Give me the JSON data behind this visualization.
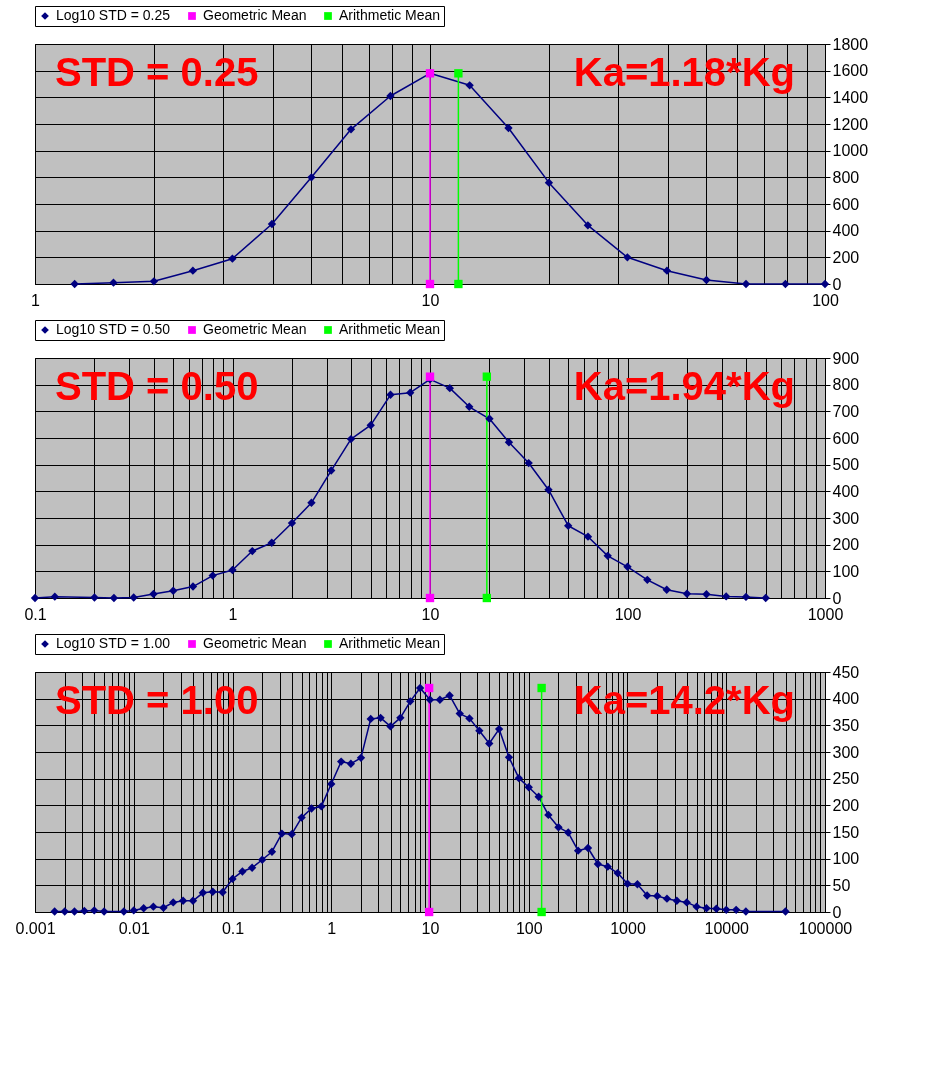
{
  "chart_data": [
    {
      "type": "line",
      "marker": "diamond",
      "line_style": "solid",
      "grid": true,
      "legend": "top",
      "log": "x",
      "annotations": [
        "STD = 0.25",
        "Ka=1.18*Kg"
      ],
      "xlim": [
        1,
        100
      ],
      "ylim": [
        0,
        1800
      ],
      "xticks": [
        1,
        {
          "value": 2,
          "label": null
        },
        {
          "value": 3,
          "label": null
        },
        {
          "value": 4,
          "label": null
        },
        {
          "value": 5,
          "label": null
        },
        {
          "value": 6,
          "label": null
        },
        {
          "value": 7,
          "label": null
        },
        {
          "value": 8,
          "label": null
        },
        {
          "value": 9,
          "label": null
        },
        10,
        {
          "value": 20,
          "label": null
        },
        {
          "value": 30,
          "label": null
        },
        {
          "value": 40,
          "label": null
        },
        {
          "value": 50,
          "label": null
        },
        {
          "value": 60,
          "label": null
        },
        {
          "value": 70,
          "label": null
        },
        {
          "value": 80,
          "label": null
        },
        {
          "value": 90,
          "label": null
        },
        100
      ],
      "yticks": [
        0,
        200,
        400,
        600,
        800,
        1000,
        1200,
        1400,
        1600,
        1800
      ],
      "series": [
        {
          "name": "Log10 STD = 0.25",
          "color": "#000080",
          "x": [
            1.26,
            1.58,
            2.0,
            2.51,
            3.16,
            3.98,
            5.01,
            6.31,
            7.94,
            10,
            12.6,
            15.8,
            20,
            25.1,
            31.6,
            39.8,
            50.1,
            63.1,
            79.4,
            100
          ],
          "values": [
            0,
            10,
            20,
            100,
            190,
            450,
            800,
            1160,
            1410,
            1580,
            1490,
            1170,
            760,
            440,
            200,
            100,
            30,
            0,
            0,
            0
          ]
        },
        {
          "name": "Geometric Mean",
          "color": "#ff00ff",
          "marker": "square",
          "x": [
            10,
            10
          ],
          "values": [
            0,
            1580
          ]
        },
        {
          "name": "Arithmetic Mean",
          "color": "#00ff00",
          "marker": "square",
          "x": [
            11.8,
            11.8
          ],
          "values": [
            0,
            1580
          ]
        }
      ]
    },
    {
      "type": "line",
      "marker": "diamond",
      "line_style": "solid",
      "grid": true,
      "legend": "top",
      "log": "x",
      "annotations": [
        "STD = 0.50",
        "Ka=1.94*Kg"
      ],
      "xlim": [
        0.1,
        1000
      ],
      "ylim": [
        0,
        900
      ],
      "xticks": [
        0.1,
        {
          "value": 0.2,
          "label": null
        },
        {
          "value": 0.3,
          "label": null
        },
        {
          "value": 0.4,
          "label": null
        },
        {
          "value": 0.5,
          "label": null
        },
        {
          "value": 0.6,
          "label": null
        },
        {
          "value": 0.7,
          "label": null
        },
        {
          "value": 0.8,
          "label": null
        },
        {
          "value": 0.9,
          "label": null
        },
        1,
        {
          "value": 2,
          "label": null
        },
        {
          "value": 3,
          "label": null
        },
        {
          "value": 4,
          "label": null
        },
        {
          "value": 5,
          "label": null
        },
        {
          "value": 6,
          "label": null
        },
        {
          "value": 7,
          "label": null
        },
        {
          "value": 8,
          "label": null
        },
        {
          "value": 9,
          "label": null
        },
        10,
        {
          "value": 20,
          "label": null
        },
        {
          "value": 30,
          "label": null
        },
        {
          "value": 40,
          "label": null
        },
        {
          "value": 50,
          "label": null
        },
        {
          "value": 60,
          "label": null
        },
        {
          "value": 70,
          "label": null
        },
        {
          "value": 80,
          "label": null
        },
        {
          "value": 90,
          "label": null
        },
        100,
        {
          "value": 200,
          "label": null
        },
        {
          "value": 300,
          "label": null
        },
        {
          "value": 400,
          "label": null
        },
        {
          "value": 500,
          "label": null
        },
        {
          "value": 600,
          "label": null
        },
        {
          "value": 700,
          "label": null
        },
        {
          "value": 800,
          "label": null
        },
        {
          "value": 900,
          "label": null
        },
        1000
      ],
      "yticks": [
        0,
        100,
        200,
        300,
        400,
        500,
        600,
        700,
        800,
        900
      ],
      "series": [
        {
          "name": "Log10 STD = 0.50",
          "color": "#000080",
          "x": [
            0.1,
            0.126,
            0.2,
            0.251,
            0.316,
            0.398,
            0.501,
            0.631,
            0.794,
            1,
            1.26,
            1.58,
            2.0,
            2.51,
            3.16,
            3.98,
            5.01,
            6.31,
            7.94,
            10,
            12.6,
            15.8,
            20,
            25.1,
            31.6,
            39.8,
            50.1,
            63.1,
            79.4,
            100,
            126,
            158,
            200,
            251,
            316,
            398,
            501
          ],
          "values": [
            0,
            5,
            2,
            0,
            2,
            15,
            27,
            43,
            84,
            105,
            176,
            207,
            281,
            357,
            478,
            596,
            648,
            762,
            770,
            820,
            787,
            717,
            672,
            584,
            506,
            406,
            271,
            230,
            158,
            117,
            68,
            31,
            16,
            14,
            6,
            4,
            0
          ]
        },
        {
          "name": "Geometric Mean",
          "color": "#ff00ff",
          "marker": "square",
          "x": [
            10,
            10
          ],
          "values": [
            0,
            830
          ]
        },
        {
          "name": "Arithmetic Mean",
          "color": "#00ff00",
          "marker": "square",
          "x": [
            19.4,
            19.4
          ],
          "values": [
            0,
            830
          ]
        }
      ]
    },
    {
      "type": "line",
      "marker": "diamond",
      "line_style": "solid",
      "grid": true,
      "legend": "top",
      "log": "x",
      "annotations": [
        "STD = 1.00",
        "Ka=14.2*Kg"
      ],
      "xlim": [
        0.001,
        100000
      ],
      "ylim": [
        0,
        450
      ],
      "xticks": [
        0.001,
        {
          "value": 0.002,
          "label": null
        },
        {
          "value": 0.003,
          "label": null
        },
        {
          "value": 0.004,
          "label": null
        },
        {
          "value": 0.005,
          "label": null
        },
        {
          "value": 0.006,
          "label": null
        },
        {
          "value": 0.007,
          "label": null
        },
        {
          "value": 0.008,
          "label": null
        },
        {
          "value": 0.009,
          "label": null
        },
        0.01,
        {
          "value": 0.02,
          "label": null
        },
        {
          "value": 0.03,
          "label": null
        },
        {
          "value": 0.04,
          "label": null
        },
        {
          "value": 0.05,
          "label": null
        },
        {
          "value": 0.06,
          "label": null
        },
        {
          "value": 0.07,
          "label": null
        },
        {
          "value": 0.08,
          "label": null
        },
        {
          "value": 0.09,
          "label": null
        },
        0.1,
        {
          "value": 0.2,
          "label": null
        },
        {
          "value": 0.3,
          "label": null
        },
        {
          "value": 0.4,
          "label": null
        },
        {
          "value": 0.5,
          "label": null
        },
        {
          "value": 0.6,
          "label": null
        },
        {
          "value": 0.7,
          "label": null
        },
        {
          "value": 0.8,
          "label": null
        },
        {
          "value": 0.9,
          "label": null
        },
        1,
        {
          "value": 2,
          "label": null
        },
        {
          "value": 3,
          "label": null
        },
        {
          "value": 4,
          "label": null
        },
        {
          "value": 5,
          "label": null
        },
        {
          "value": 6,
          "label": null
        },
        {
          "value": 7,
          "label": null
        },
        {
          "value": 8,
          "label": null
        },
        {
          "value": 9,
          "label": null
        },
        10,
        {
          "value": 20,
          "label": null
        },
        {
          "value": 30,
          "label": null
        },
        {
          "value": 40,
          "label": null
        },
        {
          "value": 50,
          "label": null
        },
        {
          "value": 60,
          "label": null
        },
        {
          "value": 70,
          "label": null
        },
        {
          "value": 80,
          "label": null
        },
        {
          "value": 90,
          "label": null
        },
        100,
        {
          "value": 200,
          "label": null
        },
        {
          "value": 300,
          "label": null
        },
        {
          "value": 400,
          "label": null
        },
        {
          "value": 500,
          "label": null
        },
        {
          "value": 600,
          "label": null
        },
        {
          "value": 700,
          "label": null
        },
        {
          "value": 800,
          "label": null
        },
        {
          "value": 900,
          "label": null
        },
        1000,
        {
          "value": 2000,
          "label": null
        },
        {
          "value": 3000,
          "label": null
        },
        {
          "value": 4000,
          "label": null
        },
        {
          "value": 5000,
          "label": null
        },
        {
          "value": 6000,
          "label": null
        },
        {
          "value": 7000,
          "label": null
        },
        {
          "value": 8000,
          "label": null
        },
        {
          "value": 9000,
          "label": null
        },
        10000,
        {
          "value": 20000,
          "label": null
        },
        {
          "value": 30000,
          "label": null
        },
        {
          "value": 40000,
          "label": null
        },
        {
          "value": 50000,
          "label": null
        },
        {
          "value": 60000,
          "label": null
        },
        {
          "value": 70000,
          "label": null
        },
        {
          "value": 80000,
          "label": null
        },
        {
          "value": 90000,
          "label": null
        },
        100000
      ],
      "yticks": [
        0,
        50,
        100,
        150,
        200,
        250,
        300,
        350,
        400,
        450
      ],
      "series": [
        {
          "name": "Log10 STD = 1.00",
          "color": "#000080",
          "x": [
            0.00158,
            0.002,
            0.00251,
            0.00316,
            0.00398,
            0.00501,
            0.00794,
            0.01,
            0.0126,
            0.0158,
            0.02,
            0.0251,
            0.0316,
            0.0398,
            0.0501,
            0.0631,
            0.0794,
            0.1,
            0.126,
            0.158,
            0.2,
            0.251,
            0.316,
            0.398,
            0.501,
            0.631,
            0.794,
            1,
            1.26,
            1.58,
            2.0,
            2.51,
            3.16,
            3.98,
            5.01,
            6.31,
            7.94,
            10,
            12.6,
            15.8,
            20,
            25.1,
            31.6,
            39.8,
            50.1,
            63.1,
            79.4,
            100,
            126,
            158,
            200,
            251,
            316,
            398,
            501,
            631,
            794,
            1000,
            1260,
            1580,
            2000,
            2510,
            3160,
            3980,
            5010,
            6310,
            7940,
            10000,
            12600,
            15800,
            39800
          ],
          "values": [
            1,
            1,
            1,
            2,
            3,
            1,
            1,
            3,
            7,
            10,
            8,
            18,
            21,
            21,
            36,
            38,
            37,
            62,
            76,
            83,
            98,
            113,
            147,
            146,
            177,
            194,
            198,
            240,
            282,
            278,
            289,
            362,
            364,
            348,
            364,
            395,
            420,
            398,
            398,
            406,
            372,
            363,
            340,
            316,
            343,
            290,
            251,
            234,
            216,
            182,
            159,
            149,
            115,
            120,
            90,
            85,
            73,
            53,
            52,
            31,
            30,
            25,
            21,
            18,
            10,
            7,
            6,
            4,
            4,
            1,
            1
          ]
        },
        {
          "name": "Geometric Mean",
          "color": "#ff00ff",
          "marker": "square",
          "x": [
            9.8,
            9.8
          ],
          "values": [
            0,
            420
          ]
        },
        {
          "name": "Arithmetic Mean",
          "color": "#00ff00",
          "marker": "square",
          "x": [
            135,
            135
          ],
          "values": [
            0,
            420
          ]
        }
      ]
    }
  ]
}
